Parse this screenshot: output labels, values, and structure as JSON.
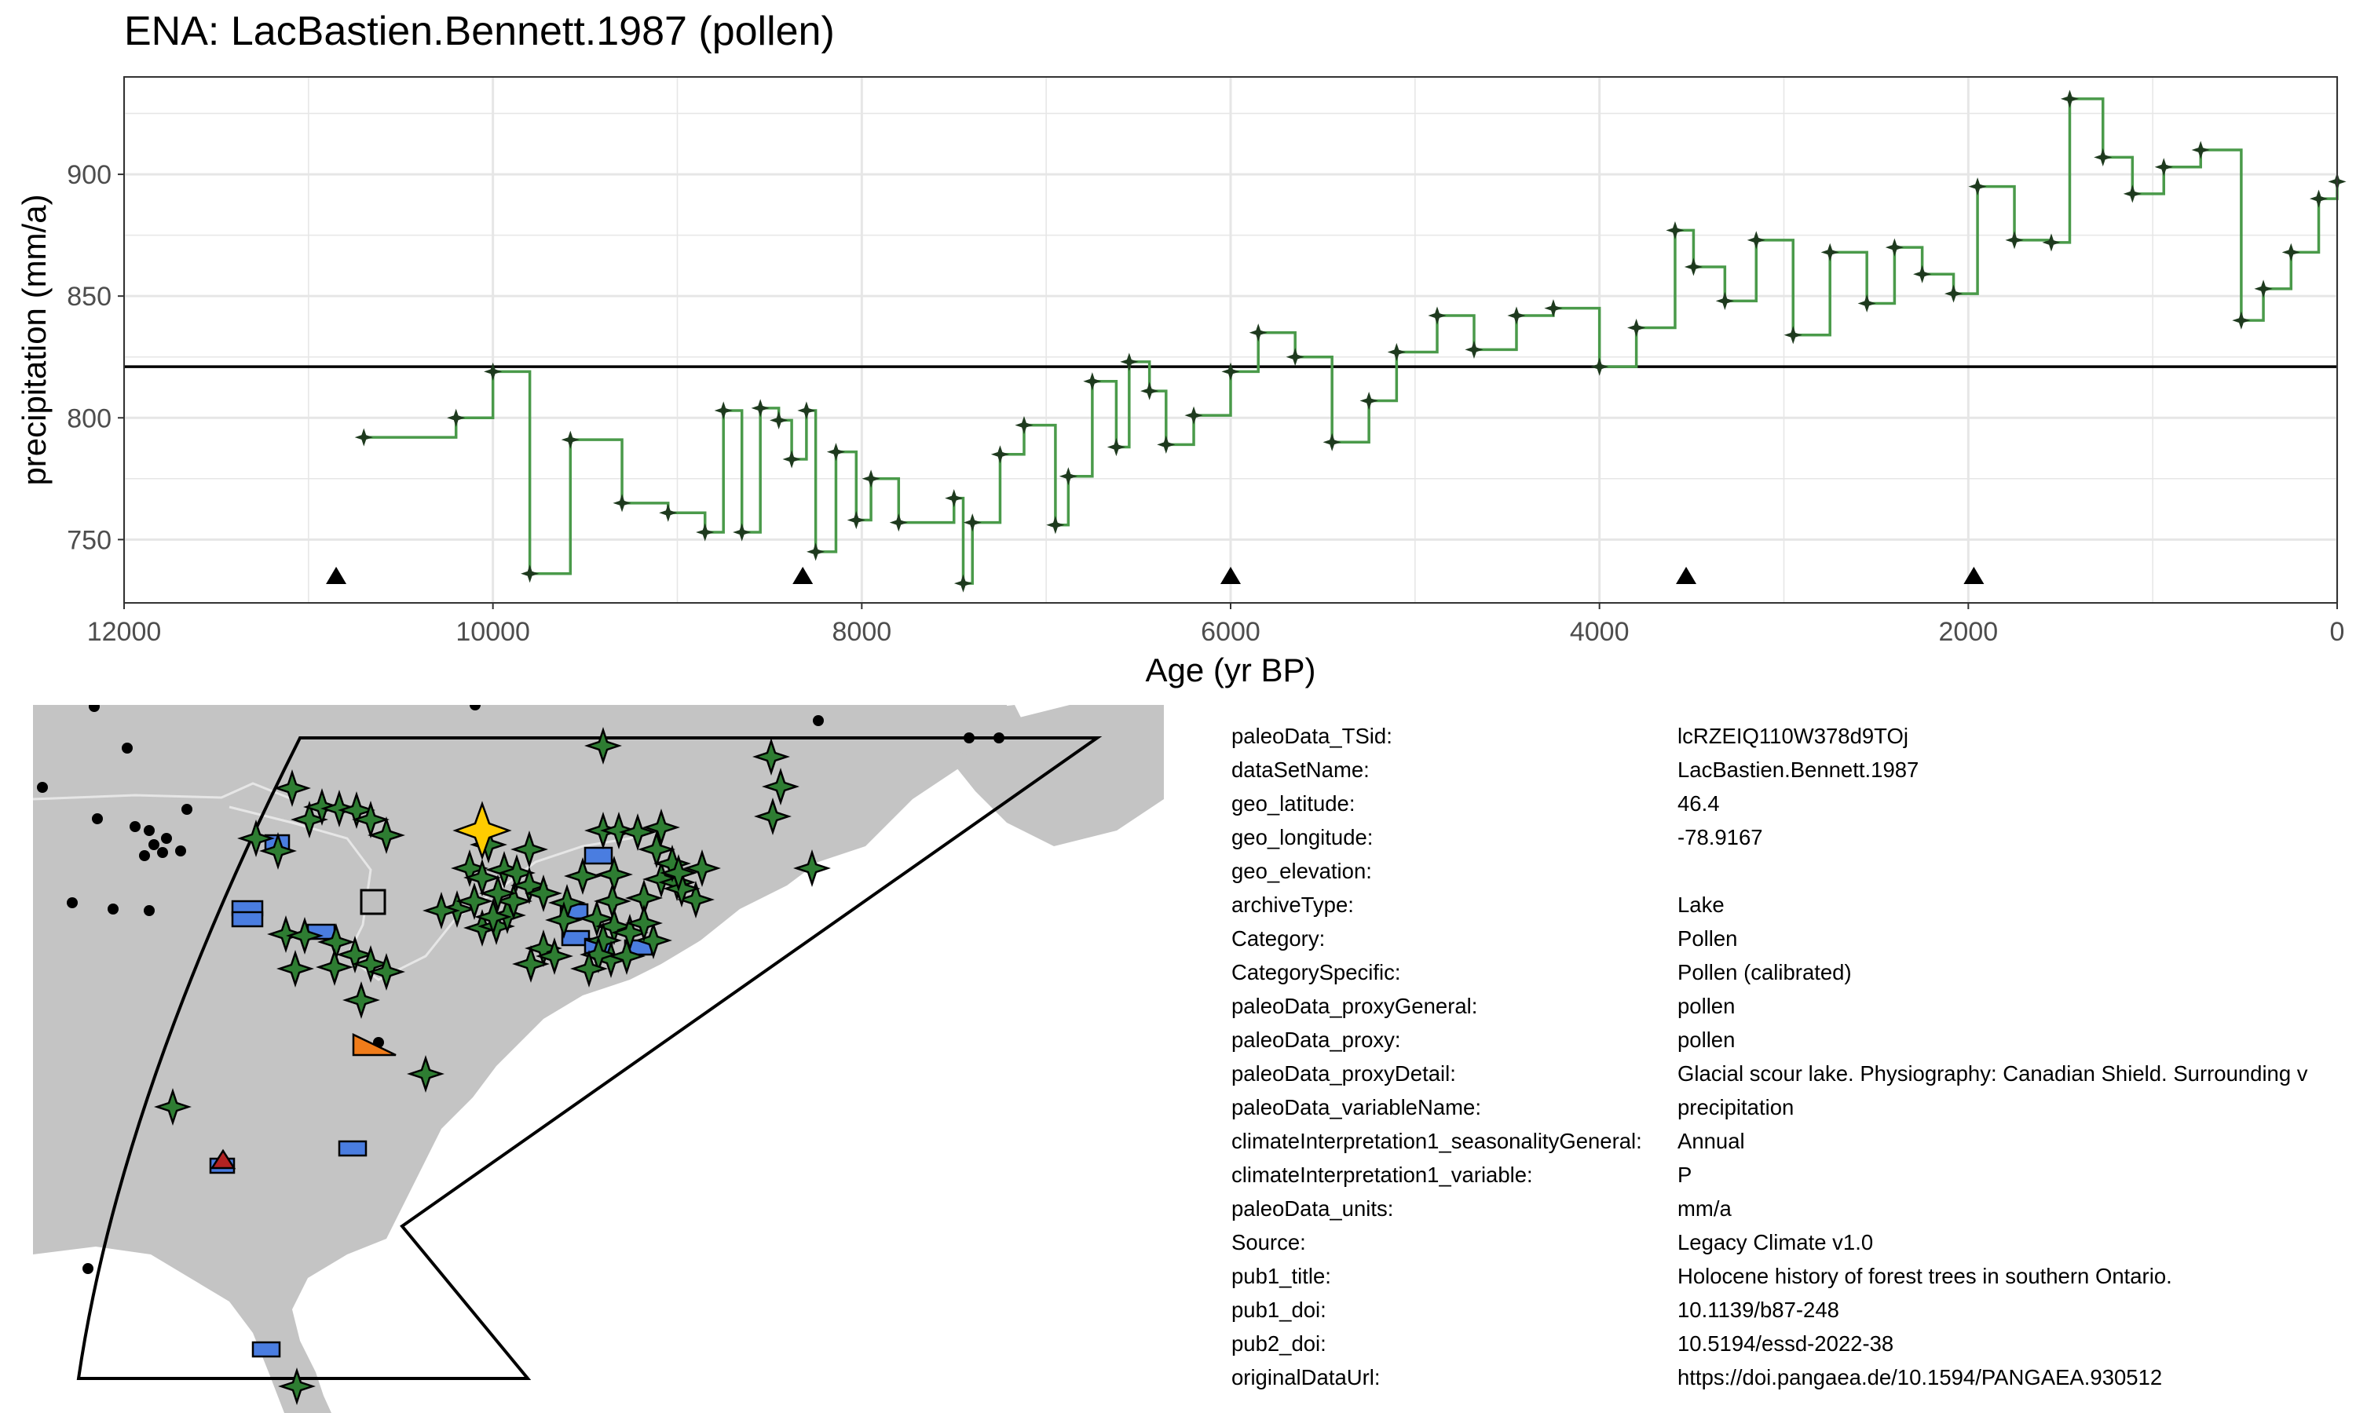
{
  "title": "ENA: LacBastien.Bennett.1987 (pollen)",
  "colors": {
    "series_line": "#4a9a4a",
    "series_point": "#1e3a1e",
    "reference_line": "#000000",
    "grid": "#e6e6e6",
    "map_land": "#c4c4c4",
    "map_border": "#e6e6e6",
    "marker_pollen": "#2e7d32",
    "marker_selected": "#ffcc00",
    "marker_rect": "#4a7de0",
    "marker_gray": "#c0c0c0",
    "marker_orange": "#f07c1a",
    "marker_red": "#b22222"
  },
  "chart_data": {
    "type": "line",
    "title": "ENA: LacBastien.Bennett.1987 (pollen)",
    "xlabel": "Age (yr BP)",
    "ylabel": "precipitation (mm/a)",
    "xlim": [
      12000,
      0
    ],
    "ylim": [
      724,
      940
    ],
    "x_reversed": true,
    "step": true,
    "grid": true,
    "xticks": [
      12000,
      10000,
      8000,
      6000,
      4000,
      2000,
      0
    ],
    "yticks": [
      750,
      800,
      850,
      900
    ],
    "reference_line": 821,
    "chron_control_ages": [
      10850,
      8320,
      6000,
      3530,
      1970
    ],
    "series": [
      {
        "x": [
          10700,
          10200,
          10000,
          9800,
          9580,
          9300,
          9050,
          8850,
          8750,
          8650,
          8550,
          8450,
          8380,
          8300,
          8250,
          8140,
          8030,
          7950,
          7800,
          7500,
          7450,
          7400,
          7250,
          7120,
          6950,
          6880,
          6750,
          6620,
          6550,
          6440,
          6350,
          6200,
          6000,
          5850,
          5650,
          5450,
          5250,
          5100,
          4880,
          4680,
          4450,
          4250,
          4000,
          3800,
          3590,
          3490,
          3320,
          3150,
          2950,
          2750,
          2550,
          2400,
          2250,
          2080,
          1950,
          1750,
          1550,
          1450,
          1270,
          1110,
          940,
          740,
          520,
          400,
          250,
          100,
          0
        ],
        "y": [
          792,
          800,
          819,
          736,
          791,
          765,
          761,
          753,
          803,
          753,
          804,
          799,
          783,
          803,
          745,
          786,
          758,
          775,
          757,
          767,
          732,
          757,
          785,
          797,
          756,
          776,
          815,
          788,
          823,
          811,
          789,
          801,
          819,
          835,
          825,
          790,
          807,
          827,
          842,
          828,
          842,
          845,
          821,
          837,
          877,
          862,
          848,
          873,
          834,
          868,
          847,
          870,
          859,
          851,
          895,
          873,
          872,
          931,
          907,
          892,
          903,
          910,
          840,
          853,
          868,
          890,
          897
        ]
      }
    ]
  },
  "map": {
    "selected_marker": "selected-site-star"
  },
  "metadata": [
    {
      "key": "paleoData_TSid:",
      "value": "lcRZEIQ110W378d9TOj"
    },
    {
      "key": "dataSetName:",
      "value": "LacBastien.Bennett.1987"
    },
    {
      "key": "geo_latitude:",
      "value": "46.4"
    },
    {
      "key": "geo_longitude:",
      "value": "-78.9167"
    },
    {
      "key": "geo_elevation:",
      "value": ""
    },
    {
      "key": "archiveType:",
      "value": "Lake"
    },
    {
      "key": "Category:",
      "value": "Pollen"
    },
    {
      "key": "CategorySpecific:",
      "value": "Pollen (calibrated)"
    },
    {
      "key": "paleoData_proxyGeneral:",
      "value": "pollen"
    },
    {
      "key": "paleoData_proxy:",
      "value": "pollen"
    },
    {
      "key": "paleoData_proxyDetail:",
      "value": "Glacial scour lake. Physiography: Canadian Shield. Surrounding v"
    },
    {
      "key": "paleoData_variableName:",
      "value": "precipitation"
    },
    {
      "key": "climateInterpretation1_seasonalityGeneral:",
      "value": "Annual"
    },
    {
      "key": "climateInterpretation1_variable:",
      "value": "P"
    },
    {
      "key": "paleoData_units:",
      "value": "mm/a"
    },
    {
      "key": "Source:",
      "value": "Legacy Climate v1.0"
    },
    {
      "key": "pub1_title:",
      "value": "Holocene history of forest trees in southern Ontario."
    },
    {
      "key": "pub1_doi:",
      "value": "10.1139/b87-248"
    },
    {
      "key": "pub2_doi:",
      "value": "10.5194/essd-2022-38"
    },
    {
      "key": "originalDataUrl:",
      "value": "https://doi.pangaea.de/10.1594/PANGAEA.930512"
    }
  ]
}
